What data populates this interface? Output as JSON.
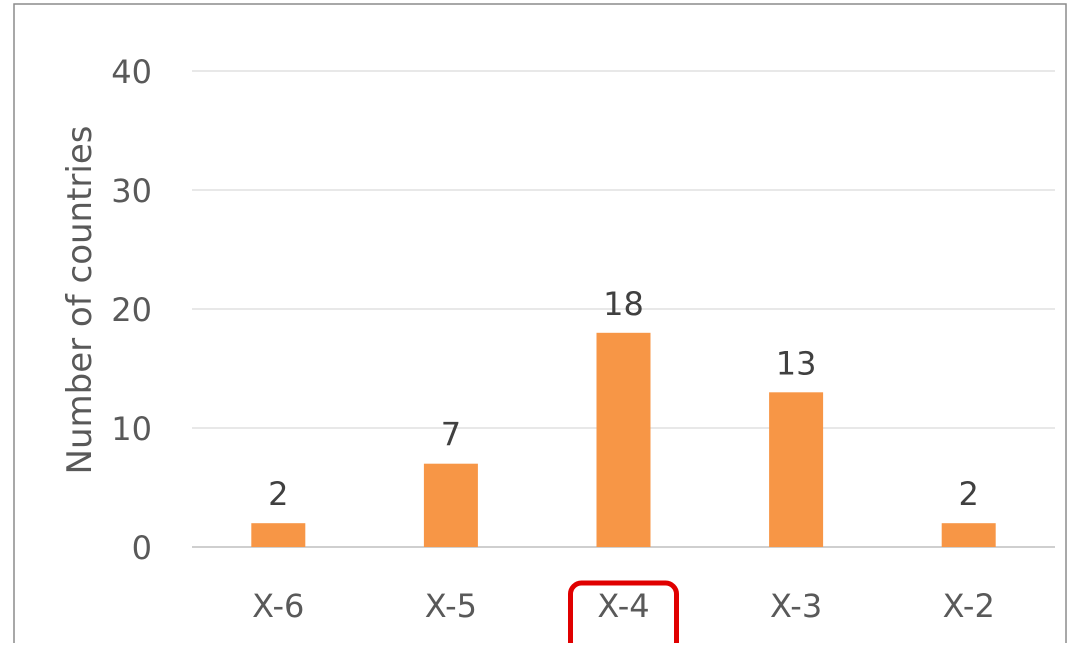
{
  "chart_data": {
    "type": "bar",
    "categories": [
      "X-6",
      "X-5",
      "X-4",
      "X-3",
      "X-2"
    ],
    "values": [
      2,
      7,
      18,
      13,
      2
    ],
    "title": "",
    "xlabel": "",
    "ylabel": "Number of countries",
    "ylim": [
      0,
      40
    ],
    "yticks": [
      0,
      10,
      20,
      30,
      40
    ],
    "grid": true,
    "legend": "none",
    "highlighted_category": "X-4"
  },
  "colors": {
    "bar": "#F79646",
    "highlight_box": "#E00000",
    "grid": "#D9D9D9",
    "axis": "#BFBFBF",
    "text": "#595959",
    "frame": "#8C8C8C"
  }
}
